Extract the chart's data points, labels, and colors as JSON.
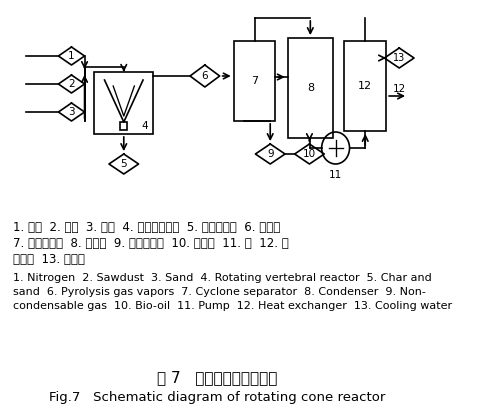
{
  "title_cn": "图 7   旋转锥反应器示意图",
  "title_en": "Fig.7   Schematic diagram of rotating cone reactor",
  "caption_cn_line1": "1. 氮气  2. 木屑  3. 砂子  4. 旋转锥反应器  5. 木炭与砂子  6. 热解气",
  "caption_cn_line2": "7. 旋风分离器  8. 冷凝器  9. 不可凝气体  10. 生物油  11. 泵  12. 热",
  "caption_cn_line3": "交换器  13. 冷却水",
  "caption_en_line1": "1. Nitrogen  2. Sawdust  3. Sand  4. Rotating vertebral reactor  5. Char and",
  "caption_en_line2": "sand  6. Pyrolysis gas vapors  7. Cyclone separator  8. Condenser  9. Non-",
  "caption_en_line3": "condensable gas  10. Bio-oil  11. Pump  12. Heat exchanger  13. Cooling water",
  "bg_color": "#ffffff",
  "line_color": "#000000"
}
